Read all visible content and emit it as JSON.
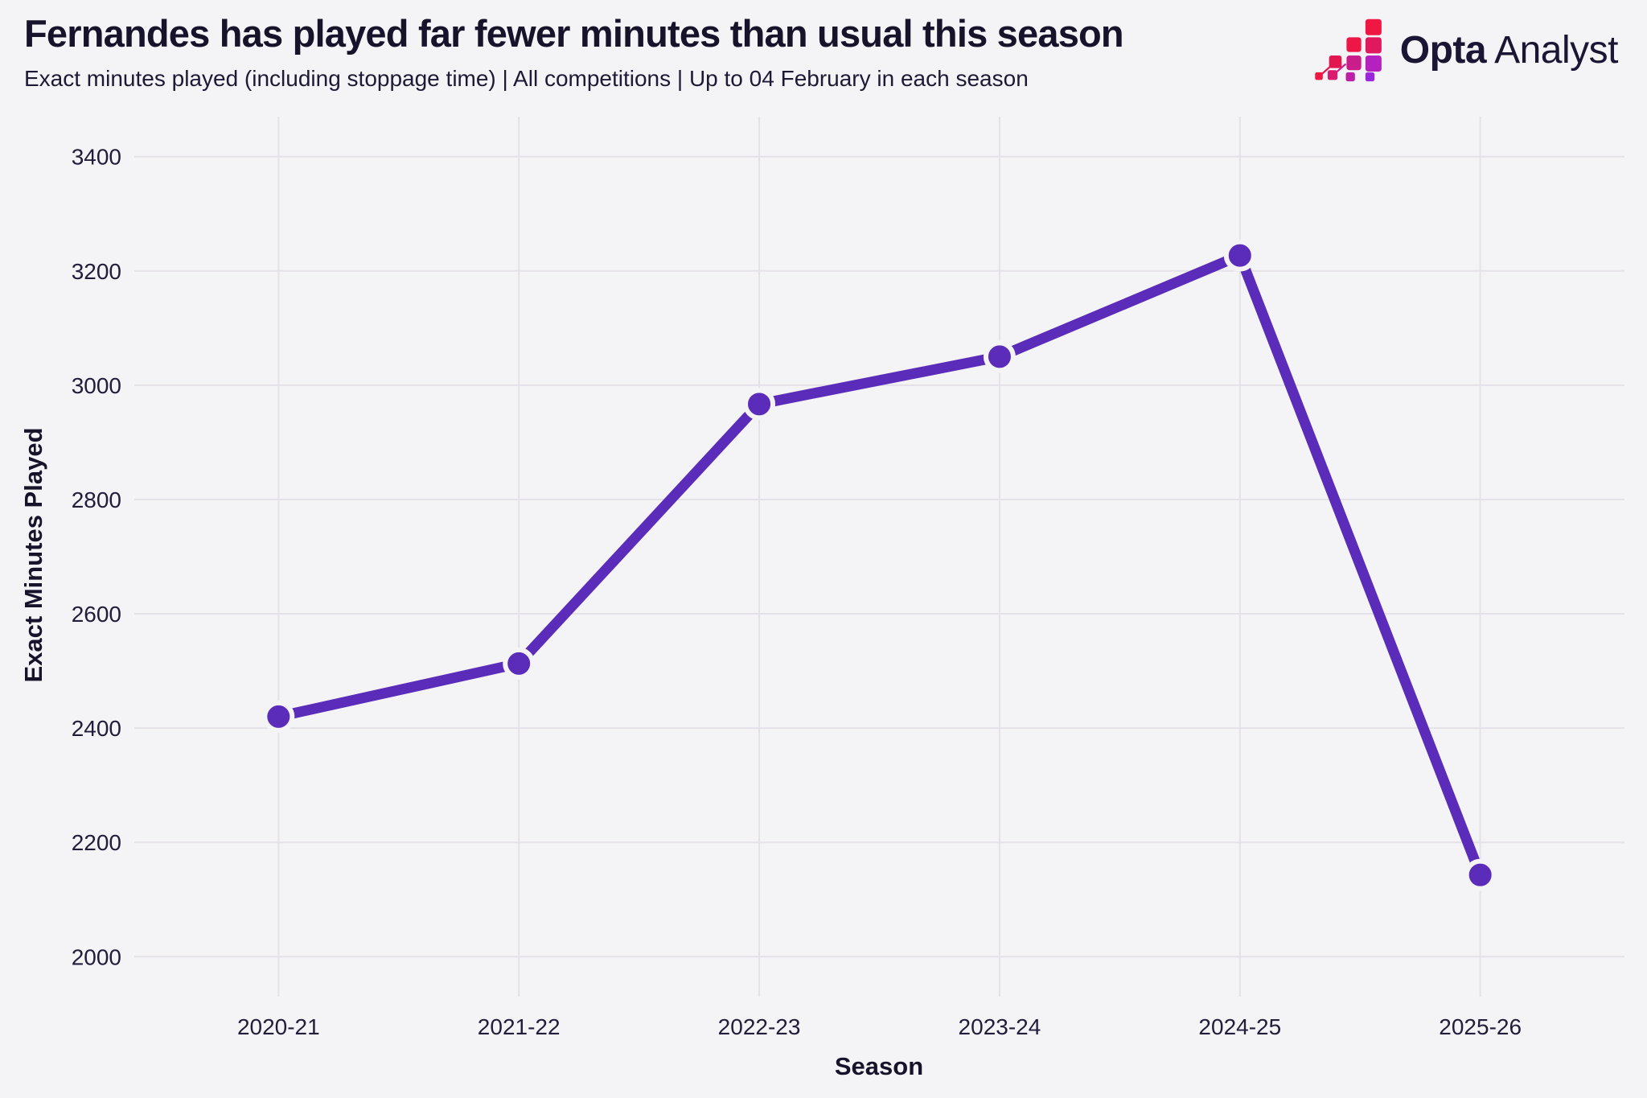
{
  "logo": {
    "brand": "Opta",
    "suffix": "Analyst"
  },
  "chart_data": {
    "type": "line",
    "title": "Fernandes has played far fewer minutes than usual this season",
    "subtitle": "Exact minutes played (including stoppage time) | All competitions | Up to 04 February in each season",
    "categories": [
      "2020-21",
      "2021-22",
      "2022-23",
      "2023-24",
      "2024-25",
      "2025-26"
    ],
    "series": [
      {
        "name": "Exact minutes played",
        "values": [
          2420,
          2513,
          2967,
          3050,
          3227,
          2143
        ]
      }
    ],
    "xlabel": "Season",
    "ylabel": "Exact Minutes Played",
    "ylim": [
      1930,
      3470
    ],
    "yticks": [
      2000,
      2200,
      2400,
      2600,
      2800,
      3000,
      3200,
      3400
    ],
    "grid": true,
    "legend": false,
    "colors": {
      "line": "#5B2BBA",
      "marker": "#5B2BBA",
      "background": "#F4F3F5",
      "gridline": "#E4E2E8",
      "text_dark": "#16132B",
      "tick_text": "#211D3A",
      "logo_red": "#F01742",
      "logo_pink": "#E0195E",
      "logo_magenta": "#C91D8C",
      "logo_purple": "#9A27DB"
    }
  }
}
